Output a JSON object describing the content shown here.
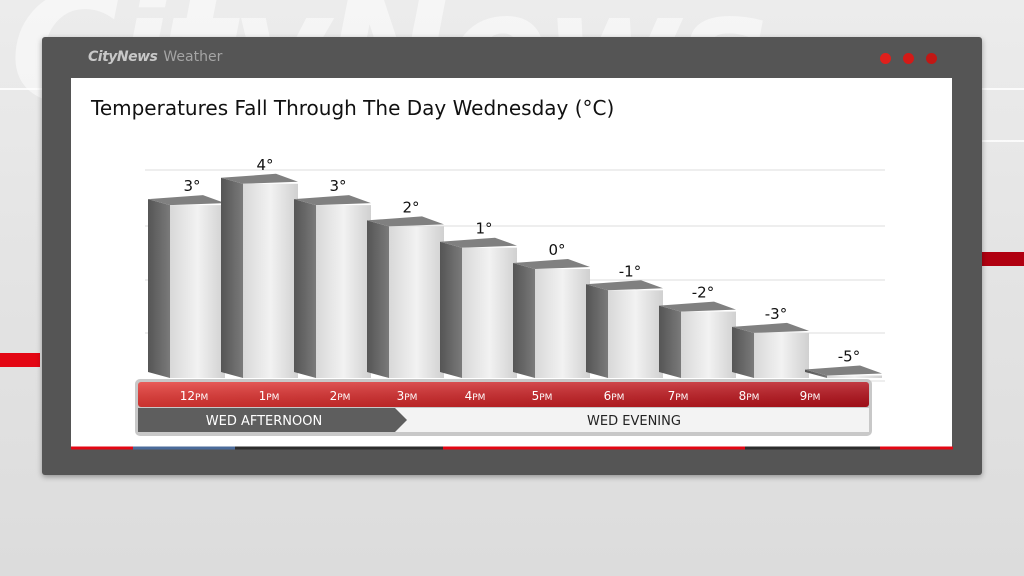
{
  "app": {
    "brand_name": "CityNews",
    "brand_section": "Weather",
    "background_watermark": "CityNews"
  },
  "colors": {
    "accent_red": "#e30613",
    "bar_front": "#e6e6e6",
    "bar_side": "#6b6b6b",
    "bar_top": "#7d7d7d"
  },
  "chart_data": {
    "type": "bar",
    "title": "Temperatures Fall Through The Day Wednesday (°C)",
    "unit": "°C",
    "xlabel": "",
    "ylabel": "",
    "categories": [
      "12PM",
      "1PM",
      "2PM",
      "3PM",
      "4PM",
      "5PM",
      "6PM",
      "7PM",
      "8PM",
      "9PM"
    ],
    "tick_labels": [
      {
        "num": "12",
        "unit": "PM"
      },
      {
        "num": "1",
        "unit": "PM"
      },
      {
        "num": "2",
        "unit": "PM"
      },
      {
        "num": "3",
        "unit": "PM"
      },
      {
        "num": "4",
        "unit": "PM"
      },
      {
        "num": "5",
        "unit": "PM"
      },
      {
        "num": "6",
        "unit": "PM"
      },
      {
        "num": "7",
        "unit": "PM"
      },
      {
        "num": "8",
        "unit": "PM"
      },
      {
        "num": "9",
        "unit": "PM"
      }
    ],
    "values": [
      3,
      4,
      3,
      2,
      1,
      0,
      -1,
      -2,
      -3,
      -5
    ],
    "data_labels": [
      "3°",
      "4°",
      "3°",
      "2°",
      "1°",
      "0°",
      "-1°",
      "-2°",
      "-3°",
      "-5°"
    ],
    "grid": true,
    "periods": [
      {
        "label": "WED AFTERNOON",
        "from_index": 0,
        "to_index": 3
      },
      {
        "label": "WED EVENING",
        "from_index": 4,
        "to_index": 9
      }
    ]
  }
}
